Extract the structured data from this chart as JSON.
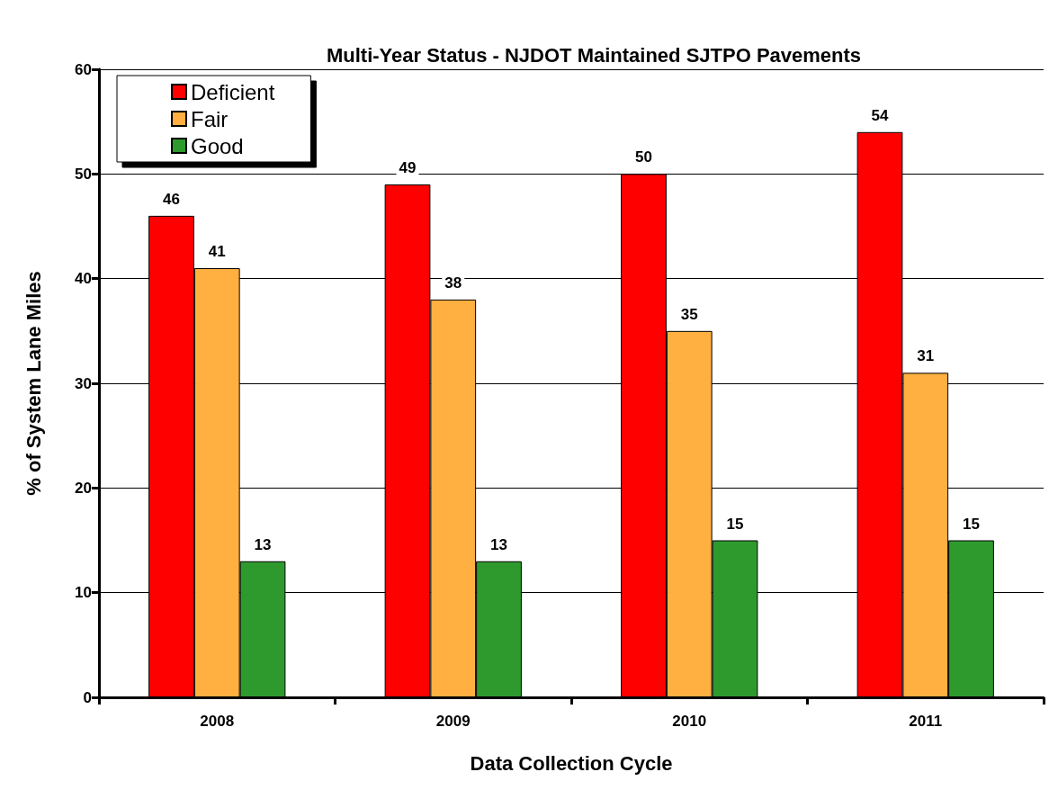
{
  "chart_data": {
    "type": "bar",
    "title": "Multi-Year Status - NJDOT Maintained SJTPO Pavements",
    "xlabel": "Data Collection Cycle",
    "ylabel": "% of System Lane Miles",
    "categories": [
      "2008",
      "2009",
      "2010",
      "2011"
    ],
    "series": [
      {
        "name": "Deficient",
        "color": "#ff0000",
        "values": [
          46,
          49,
          50,
          54
        ]
      },
      {
        "name": "Fair",
        "color": "#ffb040",
        "values": [
          41,
          38,
          35,
          31
        ]
      },
      {
        "name": "Good",
        "color": "#2e9a2e",
        "values": [
          13,
          13,
          15,
          15
        ]
      }
    ],
    "ylim": [
      0,
      60
    ],
    "yticks": [
      0,
      10,
      20,
      30,
      40,
      50,
      60
    ],
    "grid": "y",
    "legend": "top left",
    "data_labels": true
  }
}
